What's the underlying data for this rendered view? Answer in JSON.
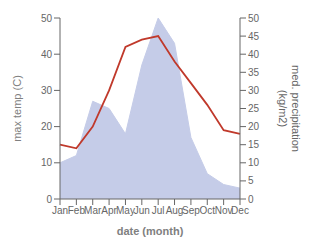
{
  "chart_data": {
    "type": "line",
    "categories": [
      "Jan",
      "Feb",
      "Mar",
      "Apr",
      "May",
      "Jun",
      "Jul",
      "Aug",
      "Sep",
      "Oct",
      "Nov",
      "Dec"
    ],
    "xlabel": "date (month)",
    "ylabel": "max temp (C)",
    "y2label": "med. precipitation\n(kg/m2)",
    "ylim": [
      0,
      50
    ],
    "yticks": [
      0,
      10,
      20,
      30,
      40,
      50
    ],
    "y2lim": [
      0,
      50
    ],
    "y2ticks": [
      0,
      5,
      10,
      15,
      20,
      25,
      30,
      35,
      40,
      45,
      50
    ],
    "series": [
      {
        "type": "area",
        "color": "#c5cce8",
        "axis": "y2",
        "values": [
          10,
          12,
          27,
          25,
          18,
          37,
          50,
          43,
          17,
          7,
          4,
          3
        ]
      },
      {
        "type": "line",
        "color": "#c0392b",
        "values": [
          15,
          14,
          20,
          30,
          42,
          44,
          45,
          38,
          32,
          26,
          19,
          18
        ]
      }
    ]
  }
}
